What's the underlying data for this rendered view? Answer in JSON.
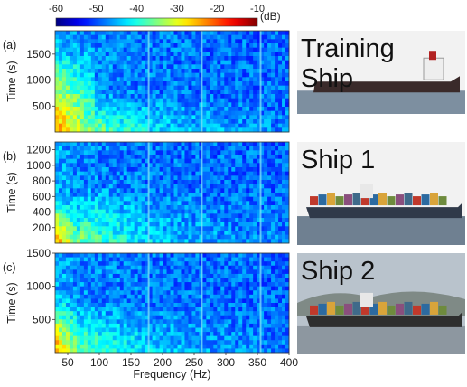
{
  "chart_data": {
    "type": "heatmap",
    "colorbar": {
      "ticks": [
        -60,
        -50,
        -40,
        -30,
        -20,
        -10
      ],
      "unit": "(dB)",
      "range": [
        -60,
        -10
      ],
      "colormap": "jet"
    },
    "xaxis": {
      "label": "Frequency (Hz)",
      "range": [
        30,
        400
      ],
      "ticks": [
        50,
        100,
        150,
        200,
        250,
        300,
        350,
        400
      ]
    },
    "panels": [
      {
        "tag": "(a)",
        "ylabel": "Time (s)",
        "ylim": [
          0,
          1950
        ],
        "yticks": [
          500,
          1000,
          1500
        ],
        "photo_label": "Training\nShip",
        "tonal_lines_hz": [
          178,
          262,
          355
        ],
        "seed": 11,
        "low_freq_energy": {
          "hot_until_hz": 95,
          "hot_time_max": 1700
        }
      },
      {
        "tag": "(b)",
        "ylabel": "Time (s)",
        "ylim": [
          0,
          1300
        ],
        "yticks": [
          200,
          400,
          600,
          800,
          1000,
          1200
        ],
        "photo_label": "Ship 1",
        "tonal_lines_hz": [
          178,
          262,
          355
        ],
        "seed": 23,
        "low_freq_energy": {
          "hot_until_hz": 70,
          "hot_time_max": 650
        }
      },
      {
        "tag": "(c)",
        "ylabel": "Time (s)",
        "ylim": [
          0,
          1500
        ],
        "yticks": [
          500,
          1000,
          1500
        ],
        "photo_label": "Ship 2",
        "tonal_lines_hz": [
          178,
          262,
          355
        ],
        "seed": 37,
        "low_freq_energy": {
          "hot_until_hz": 70,
          "hot_time_max": 900
        }
      }
    ]
  }
}
